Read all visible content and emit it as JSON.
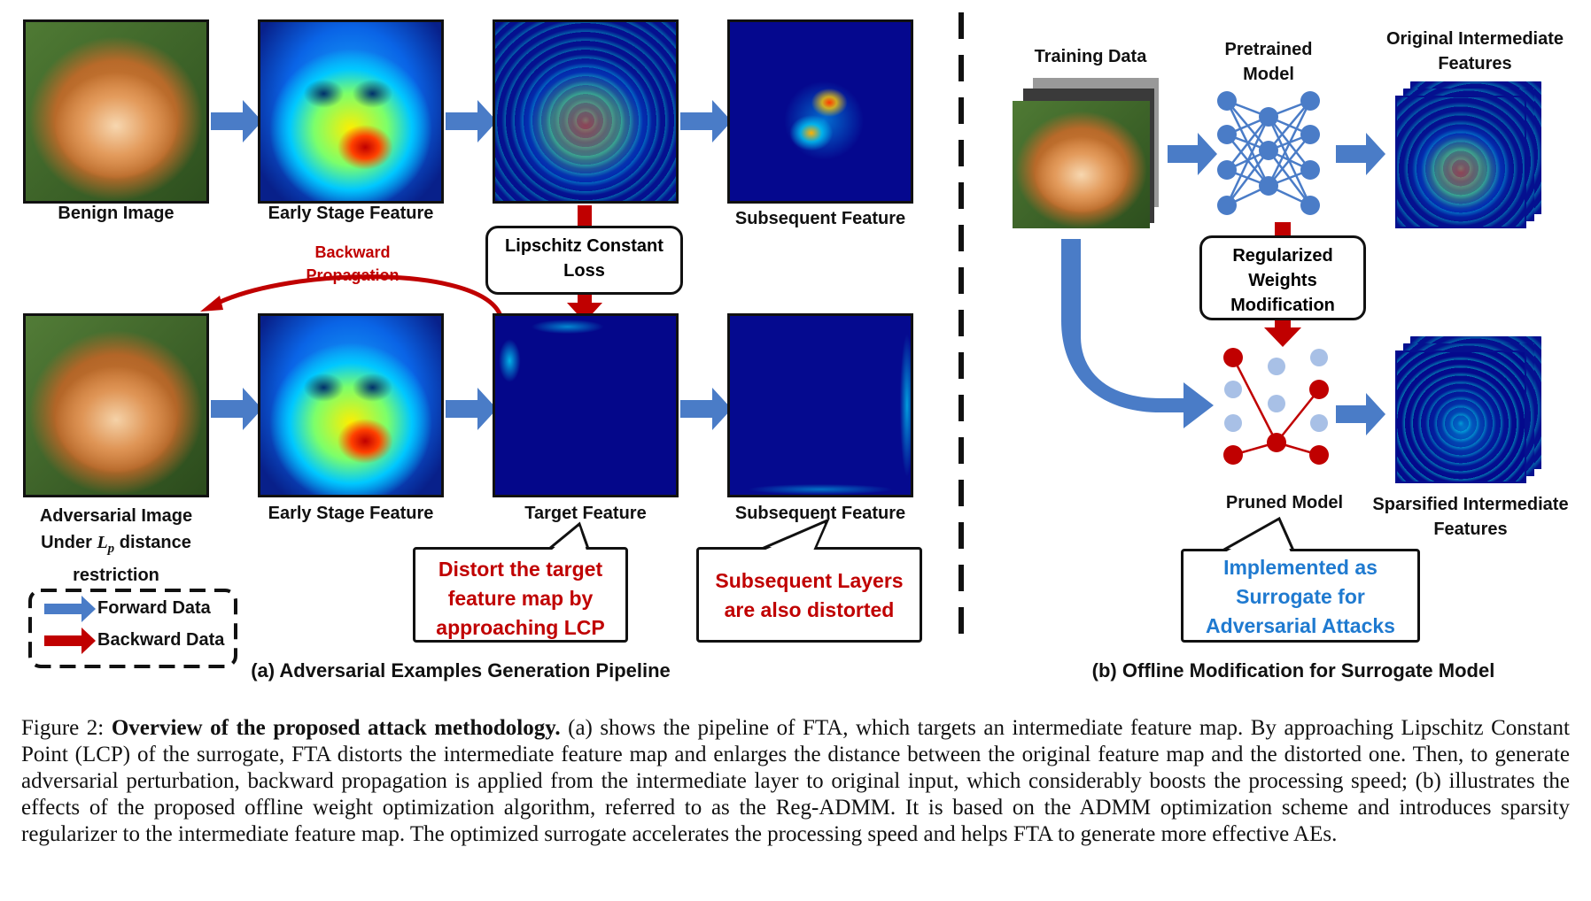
{
  "panel_a": {
    "row1": {
      "benign_label": "Benign Image",
      "early_label": "Early Stage Feature",
      "subsequent_label": "Subsequent Feature"
    },
    "loss_box": "Lipschitz Constant Loss",
    "backward_label": "Backward Propagation",
    "row2": {
      "adv_label_line1": "Adversarial Image",
      "adv_label_line2_pre": "Under",
      "adv_label_math": "L",
      "adv_label_sub": "p",
      "adv_label_line2_post": "distance",
      "adv_label_line3": "restriction",
      "early_label": "Early Stage Feature",
      "target_label": "Target Feature",
      "subsequent_label": "Subsequent Feature"
    },
    "legend": {
      "forward": "Forward Data",
      "backward": "Backward Data"
    },
    "callout1": "Distort the target feature map by approaching LCP",
    "callout2": "Subsequent Layers are also distorted",
    "title": "(a) Adversarial Examples Generation Pipeline"
  },
  "panel_b": {
    "training_label": "Training Data",
    "pretrained_label": "Pretrained Model",
    "original_label": "Original Intermediate Features",
    "regularized_box": "Regularized Weights Modification",
    "pruned_label": "Pruned Model",
    "sparsified_label": "Sparsified Intermediate Features",
    "callout": "Implemented as Surrogate for Adversarial Attacks",
    "title": "(b) Offline Modification for Surrogate Model"
  },
  "caption": {
    "prefix": "Figure 2:",
    "bold": "Overview of the proposed attack methodology.",
    "body": "(a) shows the pipeline of FTA, which targets an intermediate feature map. By approaching Lipschitz Constant Point (LCP) of the surrogate, FTA distorts the intermediate feature map and enlarges the distance between the original feature map and the distorted one. Then, to generate adversarial perturbation, backward propagation is applied from the intermediate layer to original input, which considerably boosts the processing speed; (b) illustrates the effects of the proposed offline weight optimization algorithm, referred to as the Reg-ADMM. It is based on the ADMM optimization scheme and introduces sparsity regularizer to the intermediate feature map. The optimized surrogate accelerates the processing speed and helps FTA to generate more effective AEs."
  },
  "colors": {
    "forward_arrow": "#4a7cc7",
    "backward_arrow": "#c00000",
    "callout_red": "#c00000",
    "callout_blue": "#1f7ad0",
    "node_blue": "#4a7cc7",
    "node_red": "#c00000",
    "node_faded": "#a8c0e6"
  }
}
